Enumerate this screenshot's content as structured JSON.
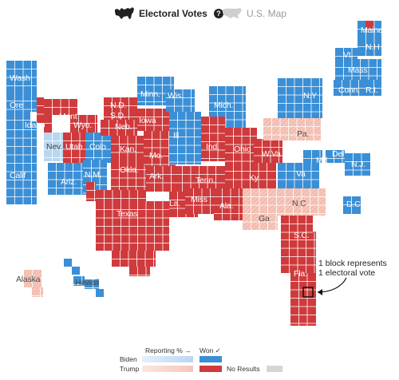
{
  "toggle": {
    "electoral_label": "Electoral Votes",
    "map_label": "U.S. Map",
    "help_glyph": "?"
  },
  "colors": {
    "biden_won": "#3a8fd6",
    "trump_won": "#cf3a3c",
    "biden_reporting": "#b9d7f1",
    "trump_reporting": "#f6c6bb",
    "no_results": "#d5d5d5",
    "grid_line": "#ffffff"
  },
  "states": [
    {
      "id": "WA",
      "label": "Wash",
      "status": "biden_won"
    },
    {
      "id": "OR",
      "label": "Ore",
      "status": "biden_won"
    },
    {
      "id": "CA",
      "label": "Calif",
      "status": "biden_won"
    },
    {
      "id": "NV",
      "label": "Nev.",
      "status": "biden_reporting"
    },
    {
      "id": "ID",
      "label": "Idaho",
      "status": "trump_won"
    },
    {
      "id": "MT",
      "label": "Mont",
      "status": "trump_won"
    },
    {
      "id": "WY",
      "label": "Wyo.",
      "status": "trump_won"
    },
    {
      "id": "UT",
      "label": "Utah",
      "status": "trump_won"
    },
    {
      "id": "CO",
      "label": "Colo",
      "status": "biden_won"
    },
    {
      "id": "AZ",
      "label": "Ariz.",
      "status": "biden_won"
    },
    {
      "id": "NM",
      "label": "N.M.",
      "status": "biden_won"
    },
    {
      "id": "ND",
      "label": "N.D.",
      "status": "trump_won"
    },
    {
      "id": "SD",
      "label": "S.D.",
      "status": "trump_won"
    },
    {
      "id": "NE",
      "label": "Neb.",
      "status": "trump_won"
    },
    {
      "id": "KS",
      "label": "Kan.",
      "status": "trump_won"
    },
    {
      "id": "OK",
      "label": "Okla.",
      "status": "trump_won"
    },
    {
      "id": "TX",
      "label": "Texas",
      "status": "trump_won"
    },
    {
      "id": "MN",
      "label": "Minn.",
      "status": "biden_won"
    },
    {
      "id": "IA",
      "label": "Iowa",
      "status": "trump_won"
    },
    {
      "id": "MO",
      "label": "Mo.",
      "status": "trump_won"
    },
    {
      "id": "AR",
      "label": "Ark.",
      "status": "trump_won"
    },
    {
      "id": "LA",
      "label": "La.",
      "status": "trump_won"
    },
    {
      "id": "WI",
      "label": "Wis",
      "status": "biden_won"
    },
    {
      "id": "IL",
      "label": "Ill",
      "status": "biden_won"
    },
    {
      "id": "MI",
      "label": "Mich.",
      "status": "biden_won"
    },
    {
      "id": "IN",
      "label": "Ind.",
      "status": "trump_won"
    },
    {
      "id": "OH",
      "label": "Ohio",
      "status": "trump_won"
    },
    {
      "id": "KY",
      "label": "Ky",
      "status": "trump_won"
    },
    {
      "id": "TN",
      "label": "Tenn.",
      "status": "trump_won"
    },
    {
      "id": "MS",
      "label": "Miss",
      "status": "trump_won"
    },
    {
      "id": "AL",
      "label": "Ala.",
      "status": "trump_won"
    },
    {
      "id": "GA",
      "label": "Ga",
      "status": "trump_reporting"
    },
    {
      "id": "FL",
      "label": "Fla.",
      "status": "trump_won"
    },
    {
      "id": "SC",
      "label": "S.C.",
      "status": "trump_won"
    },
    {
      "id": "NC",
      "label": "N.C",
      "status": "trump_reporting"
    },
    {
      "id": "VA",
      "label": "Va",
      "status": "biden_won"
    },
    {
      "id": "WV",
      "label": "W.Va",
      "status": "trump_won"
    },
    {
      "id": "PA",
      "label": "Pa.",
      "status": "trump_reporting"
    },
    {
      "id": "NY",
      "label": "N.Y",
      "status": "biden_won"
    },
    {
      "id": "MD",
      "label": "Md",
      "status": "biden_won"
    },
    {
      "id": "DE",
      "label": "Del",
      "status": "biden_won"
    },
    {
      "id": "NJ",
      "label": "N.J.",
      "status": "biden_won"
    },
    {
      "id": "DC",
      "label": "D.C",
      "status": "biden_won"
    },
    {
      "id": "CT",
      "label": "Conn.",
      "status": "biden_won"
    },
    {
      "id": "RI",
      "label": "R.I.",
      "status": "biden_won"
    },
    {
      "id": "MA",
      "label": "Mass",
      "status": "biden_won"
    },
    {
      "id": "VT",
      "label": "Vt.",
      "status": "biden_won"
    },
    {
      "id": "NH",
      "label": "N.H",
      "status": "biden_won"
    },
    {
      "id": "ME",
      "label": "Maine",
      "status": "biden_won"
    },
    {
      "id": "AK",
      "label": "Alaska",
      "status": "trump_reporting"
    },
    {
      "id": "HI",
      "label": "Hawaii",
      "status": "biden_won"
    }
  ],
  "annotation": {
    "line1": "1 block represents",
    "line2": "1 electoral vote"
  },
  "legend": {
    "reporting_label": "Reporting % →",
    "won_label": "Won ✓",
    "biden_label": "Biden",
    "trump_label": "Trump",
    "no_results_label": "No Results"
  }
}
